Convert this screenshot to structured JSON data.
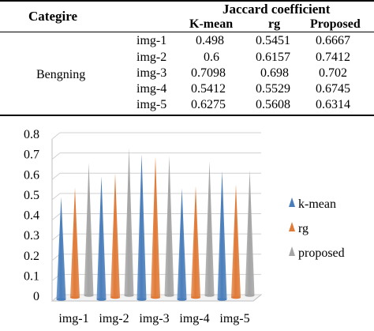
{
  "table": {
    "header": {
      "category": "Categire",
      "group": "Jaccard coefficient",
      "columns": [
        "K-mean",
        "rg",
        "Proposed"
      ]
    },
    "category_label": "Bengning",
    "rows": [
      {
        "image": "img-1",
        "k_mean": "0.498",
        "rg": "0.5451",
        "proposed": "0.6667"
      },
      {
        "image": "img-2",
        "k_mean": "0.6",
        "rg": "0.6157",
        "proposed": "0.7412"
      },
      {
        "image": "img-3",
        "k_mean": "0.7098",
        "rg": "0.698",
        "proposed": "0.702"
      },
      {
        "image": "img-4",
        "k_mean": "0.5412",
        "rg": "0.5529",
        "proposed": "0.6745"
      },
      {
        "image": "img-5",
        "k_mean": "0.6275",
        "rg": "0.5608",
        "proposed": "0.6314"
      }
    ]
  },
  "chart_data": {
    "type": "bar",
    "style": "3d-cone",
    "categories": [
      "img-1",
      "img-2",
      "img-3",
      "img-4",
      "img-5"
    ],
    "series": [
      {
        "name": "k-mean",
        "color": "#4a7ebb",
        "values": [
          0.498,
          0.6,
          0.7098,
          0.5412,
          0.6275
        ]
      },
      {
        "name": "rg",
        "color": "#e07b39",
        "values": [
          0.5451,
          0.6157,
          0.698,
          0.5529,
          0.5608
        ]
      },
      {
        "name": "proposed",
        "color": "#a5a5a5",
        "values": [
          0.6667,
          0.7412,
          0.702,
          0.6745,
          0.6314
        ]
      }
    ],
    "ylim": [
      0,
      0.8
    ],
    "yticks": [
      "0",
      "0.1",
      "0.2",
      "0.3",
      "0.4",
      "0.5",
      "0.6",
      "0.7",
      "0.8"
    ],
    "grid": true,
    "legend_position": "right"
  }
}
